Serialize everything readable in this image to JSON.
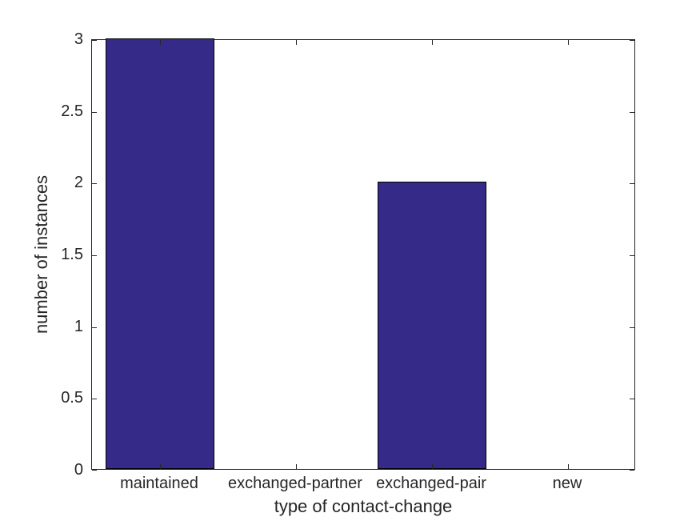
{
  "chart_data": {
    "type": "bar",
    "categories": [
      "maintained",
      "exchanged-partner",
      "exchanged-pair",
      "new"
    ],
    "values": [
      3,
      0,
      2,
      0
    ],
    "title": "",
    "xlabel": "type of contact-change",
    "ylabel": "number of instances",
    "ylim": [
      0,
      3
    ],
    "yticks": [
      0,
      0.5,
      1,
      1.5,
      2,
      2.5,
      3
    ],
    "ytick_labels": [
      "0",
      "0.5",
      "1",
      "1.5",
      "2",
      "2.5",
      "3"
    ],
    "bar_width_fraction": 0.8,
    "bar_color": "#352A87",
    "bar_edge_color": "#000000",
    "axis_color": "#262626",
    "background_color": "#FFFFFF",
    "grid": false,
    "legend": false,
    "box": true,
    "tick_direction": "in"
  }
}
